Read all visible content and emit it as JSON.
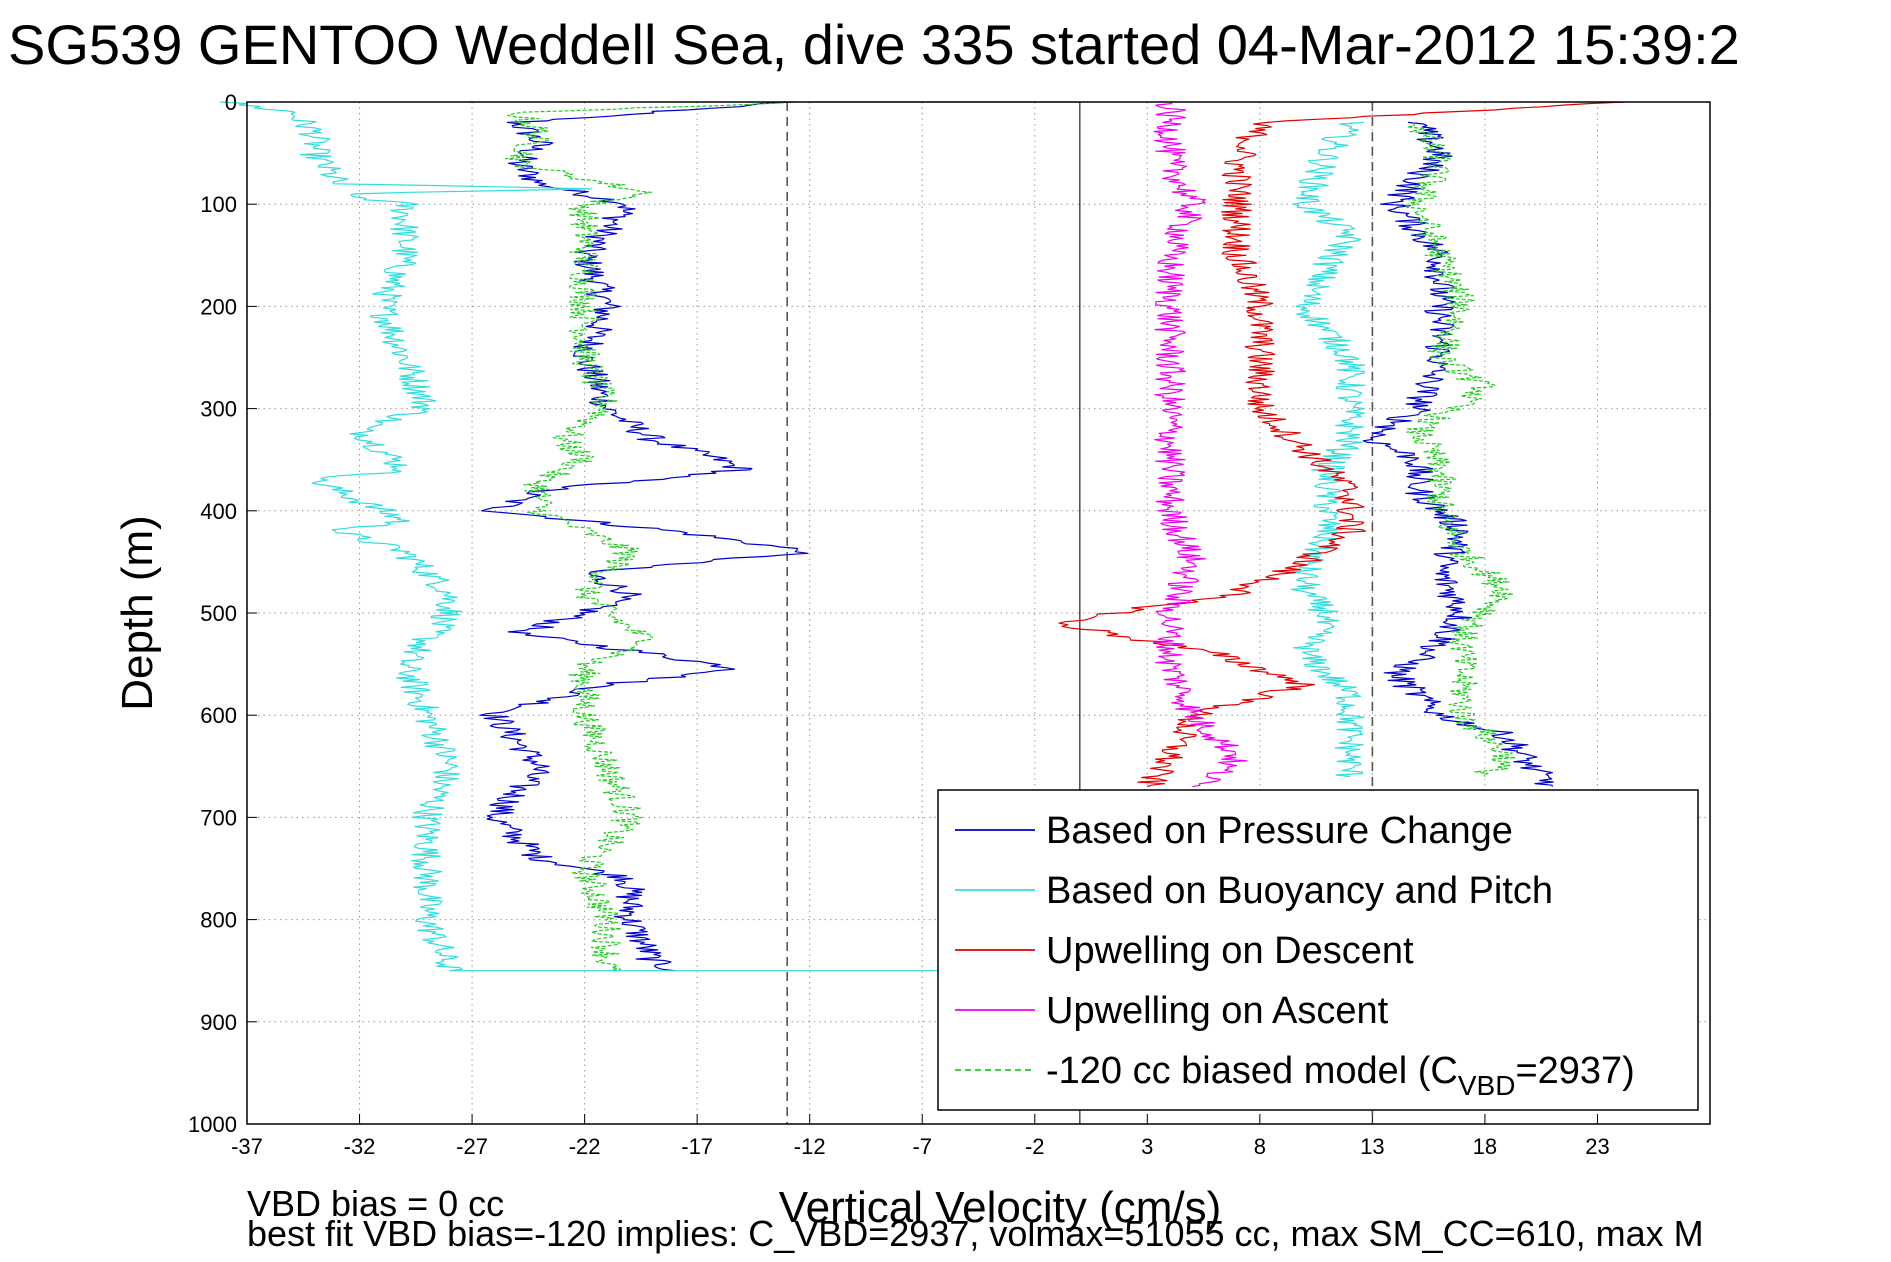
{
  "chart_data": {
    "type": "line",
    "title": "SG539 GENTOO Weddell Sea, dive 335 started 04-Mar-2012 15:39:2",
    "xlabel": "Vertical Velocity (cm/s)",
    "ylabel": "Depth (m)",
    "xlim": [
      -37,
      28
    ],
    "ylim": [
      1000,
      0
    ],
    "y_reversed": true,
    "grid": true,
    "xticks": [
      -37,
      -32,
      -27,
      -22,
      -17,
      -12,
      -7,
      -2,
      3,
      8,
      13,
      18,
      23
    ],
    "yticks": [
      0,
      100,
      200,
      300,
      400,
      500,
      600,
      700,
      800,
      900,
      1000
    ],
    "reference_lines": [
      {
        "x": -13,
        "style": "dashed"
      },
      {
        "x": 0,
        "style": "solid"
      },
      {
        "x": 13,
        "style": "dashed"
      }
    ],
    "legend_position": "lower-right",
    "legend": [
      {
        "label": "Based on Pressure Change",
        "color": "#0000cc",
        "dash": false
      },
      {
        "label": "Based on Buoyancy and Pitch",
        "color": "#33dddd",
        "dash": false
      },
      {
        "label": "Upwelling on Descent",
        "color": "#e00000",
        "dash": false
      },
      {
        "label": "Upwelling on Ascent",
        "color": "#ee00ee",
        "dash": false
      },
      {
        "label_pre": "-120 cc biased model (C",
        "label_sub": "VBD",
        "label_post": "=2937)",
        "color": "#22cc22",
        "dash": true
      }
    ],
    "series": [
      {
        "color": "#0000cc",
        "depths": [
          0,
          20,
          40,
          60,
          80,
          100,
          150,
          200,
          250,
          300,
          330,
          350,
          360,
          380,
          400,
          410,
          420,
          440,
          460,
          480,
          500,
          520,
          540,
          555,
          570,
          600,
          650,
          700,
          720,
          740,
          760,
          800,
          840,
          850
        ],
        "values": [
          -13,
          -25,
          -24,
          -25,
          -24,
          -20,
          -22,
          -21,
          -22,
          -21,
          -19,
          -16,
          -15,
          -24,
          -26,
          -22,
          -18,
          -12,
          -22,
          -20,
          -22,
          -25,
          -19,
          -15,
          -21,
          -26,
          -24,
          -26,
          -25,
          -24,
          -20,
          -20,
          -19,
          -18
        ]
      },
      {
        "color": "#33dddd",
        "depths": [
          0,
          10,
          30,
          50,
          80,
          85,
          90,
          100,
          150,
          200,
          250,
          300,
          320,
          340,
          360,
          370,
          390,
          410,
          420,
          440,
          460,
          480,
          500,
          550,
          600,
          650,
          700,
          750,
          800,
          850
        ],
        "values": [
          -38,
          -35,
          -34,
          -34,
          -33,
          -22,
          -33,
          -30,
          -30,
          -31,
          -30,
          -29,
          -32,
          -31,
          -30,
          -34,
          -32,
          -30,
          -33,
          -30,
          -29,
          -28,
          -28,
          -30,
          -29,
          -28,
          -29,
          -29,
          -29,
          -28
        ]
      },
      {
        "color": "#22cc22",
        "depths": [
          0,
          10,
          30,
          60,
          90,
          100,
          150,
          200,
          250,
          300,
          330,
          350,
          370,
          400,
          420,
          440,
          460,
          480,
          500,
          530,
          550,
          600,
          650,
          700,
          750,
          800,
          850
        ],
        "values": [
          -12,
          -25,
          -24,
          -25,
          -19,
          -22,
          -22,
          -22,
          -22,
          -21,
          -23,
          -22,
          -24,
          -24,
          -22,
          -20,
          -21,
          -22,
          -21,
          -19,
          -22,
          -22,
          -21,
          -20,
          -22,
          -21,
          -21
        ]
      },
      {
        "color": "#0000cc",
        "depths": [
          20,
          50,
          100,
          150,
          200,
          250,
          300,
          330,
          350,
          380,
          420,
          460,
          500,
          530,
          560,
          600,
          620,
          650,
          670
        ],
        "values": [
          15,
          16,
          14,
          16,
          16,
          16,
          15,
          13,
          15,
          15,
          17,
          16,
          17,
          16,
          14,
          16,
          19,
          20,
          21
        ]
      },
      {
        "color": "#33dddd",
        "depths": [
          20,
          50,
          100,
          130,
          160,
          200,
          250,
          300,
          330,
          360,
          390,
          420,
          460,
          480,
          500,
          540,
          580,
          620,
          660
        ],
        "values": [
          12,
          11,
          10,
          12,
          11,
          10,
          12,
          12,
          12,
          11,
          11,
          11,
          10,
          10,
          11,
          10,
          12,
          12,
          12
        ]
      },
      {
        "color": "#22cc22",
        "depths": [
          20,
          60,
          100,
          150,
          200,
          250,
          280,
          320,
          360,
          400,
          440,
          480,
          520,
          560,
          600,
          640,
          660
        ],
        "values": [
          15,
          16,
          15,
          16,
          17,
          16,
          18,
          15,
          16,
          16,
          17,
          19,
          17,
          17,
          17,
          19,
          18
        ]
      },
      {
        "color": "#e00000",
        "depths": [
          0,
          20,
          60,
          100,
          150,
          200,
          250,
          300,
          340,
          380,
          420,
          450,
          480,
          510,
          540,
          570,
          600,
          640,
          670
        ],
        "values": [
          24,
          8,
          7,
          7,
          7,
          8,
          8,
          8,
          10,
          12,
          12,
          10,
          7,
          -1,
          6,
          10,
          5,
          4,
          3
        ]
      },
      {
        "color": "#ee00ee",
        "depths": [
          0,
          20,
          60,
          100,
          150,
          200,
          250,
          300,
          350,
          400,
          450,
          500,
          550,
          600,
          640,
          660,
          670
        ],
        "values": [
          4,
          4,
          4,
          5,
          4,
          4,
          4,
          4,
          4,
          4,
          5,
          4,
          4,
          5,
          7,
          6,
          5
        ]
      },
      {
        "color": "#33dddd",
        "depths": [
          850,
          850
        ],
        "values": [
          -28,
          -6
        ]
      },
      {
        "color": "#22cc22",
        "depths": [
          0,
          0
        ],
        "values": [
          -12,
          0
        ]
      }
    ]
  },
  "footer": {
    "line1": "VBD bias = 0 cc",
    "line2": "best fit VBD bias=-120 implies: C_VBD=2937, volmax=51055 cc, max SM_CC=610, max M"
  }
}
